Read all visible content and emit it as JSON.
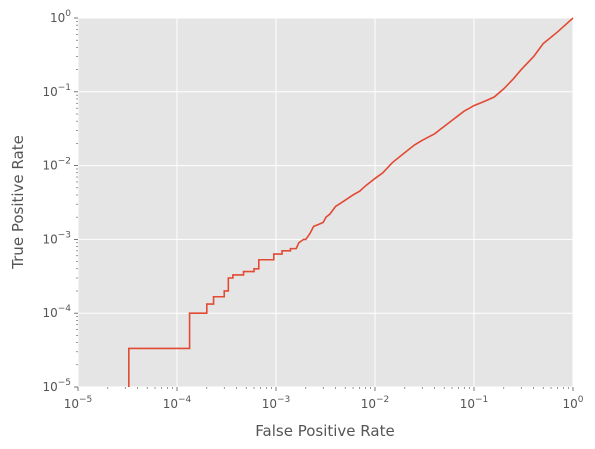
{
  "chart_data": {
    "type": "line",
    "xlabel": "False Positive Rate",
    "ylabel": "True Positive Rate",
    "xscale": "log",
    "yscale": "log",
    "xlim": [
      1e-05,
      1
    ],
    "ylim": [
      1e-05,
      1
    ],
    "grid": true,
    "background": "#e5e5e5",
    "line_color": "#e24a33",
    "x_ticks": [
      {
        "base": "10",
        "exp": "−5",
        "value": 1e-05
      },
      {
        "base": "10",
        "exp": "−4",
        "value": 0.0001
      },
      {
        "base": "10",
        "exp": "−3",
        "value": 0.001
      },
      {
        "base": "10",
        "exp": "−2",
        "value": 0.01
      },
      {
        "base": "10",
        "exp": "−1",
        "value": 0.1
      },
      {
        "base": "10",
        "exp": "0",
        "value": 1
      }
    ],
    "y_ticks": [
      {
        "base": "10",
        "exp": "−5",
        "value": 1e-05
      },
      {
        "base": "10",
        "exp": "−4",
        "value": 0.0001
      },
      {
        "base": "10",
        "exp": "−3",
        "value": 0.001
      },
      {
        "base": "10",
        "exp": "−2",
        "value": 0.01
      },
      {
        "base": "10",
        "exp": "−1",
        "value": 0.1
      },
      {
        "base": "10",
        "exp": "0",
        "value": 1
      }
    ],
    "series": [
      {
        "points": [
          [
            3.26e-05,
            1e-05
          ],
          [
            3.26e-05,
            3.33e-05
          ],
          [
            0.000134,
            3.33e-05
          ],
          [
            0.000134,
            0.0001
          ],
          [
            0.0002,
            0.0001
          ],
          [
            0.0002,
            0.000133
          ],
          [
            0.000234,
            0.000133
          ],
          [
            0.000234,
            0.000167
          ],
          [
            0.0003,
            0.000167
          ],
          [
            0.0003,
            0.0002
          ],
          [
            0.00033,
            0.0002
          ],
          [
            0.00033,
            0.0003
          ],
          [
            0.000367,
            0.0003
          ],
          [
            0.000367,
            0.00033
          ],
          [
            0.00047,
            0.00033
          ],
          [
            0.00047,
            0.000367
          ],
          [
            0.0006,
            0.000367
          ],
          [
            0.0006,
            0.0004
          ],
          [
            0.00067,
            0.0004
          ],
          [
            0.00067,
            0.00053
          ],
          [
            0.00095,
            0.00053
          ],
          [
            0.00095,
            0.000633
          ],
          [
            0.00115,
            0.000633
          ],
          [
            0.00115,
            0.0007
          ],
          [
            0.0014,
            0.0007
          ],
          [
            0.0014,
            0.00075
          ],
          [
            0.0016,
            0.00075
          ],
          [
            0.0017,
            0.0009
          ],
          [
            0.0019,
            0.001
          ],
          [
            0.002,
            0.001
          ],
          [
            0.0022,
            0.0012
          ],
          [
            0.0024,
            0.0015
          ],
          [
            0.0027,
            0.0016
          ],
          [
            0.003,
            0.0017
          ],
          [
            0.0032,
            0.002
          ],
          [
            0.0035,
            0.0022
          ],
          [
            0.004,
            0.0028
          ],
          [
            0.0045,
            0.0031
          ],
          [
            0.005,
            0.0034
          ],
          [
            0.006,
            0.004
          ],
          [
            0.007,
            0.0045
          ],
          [
            0.008,
            0.0053
          ],
          [
            0.009,
            0.006
          ],
          [
            0.01,
            0.0067
          ],
          [
            0.012,
            0.008
          ],
          [
            0.015,
            0.011
          ],
          [
            0.02,
            0.015
          ],
          [
            0.025,
            0.019
          ],
          [
            0.03,
            0.022
          ],
          [
            0.04,
            0.027
          ],
          [
            0.05,
            0.034
          ],
          [
            0.06,
            0.041
          ],
          [
            0.07,
            0.048
          ],
          [
            0.08,
            0.055
          ],
          [
            0.09,
            0.06
          ],
          [
            0.1,
            0.065
          ],
          [
            0.13,
            0.075
          ],
          [
            0.16,
            0.085
          ],
          [
            0.2,
            0.11
          ],
          [
            0.25,
            0.15
          ],
          [
            0.3,
            0.2
          ],
          [
            0.4,
            0.3
          ],
          [
            0.5,
            0.45
          ],
          [
            0.7,
            0.65
          ],
          [
            1.0,
            1.0
          ]
        ]
      }
    ]
  }
}
